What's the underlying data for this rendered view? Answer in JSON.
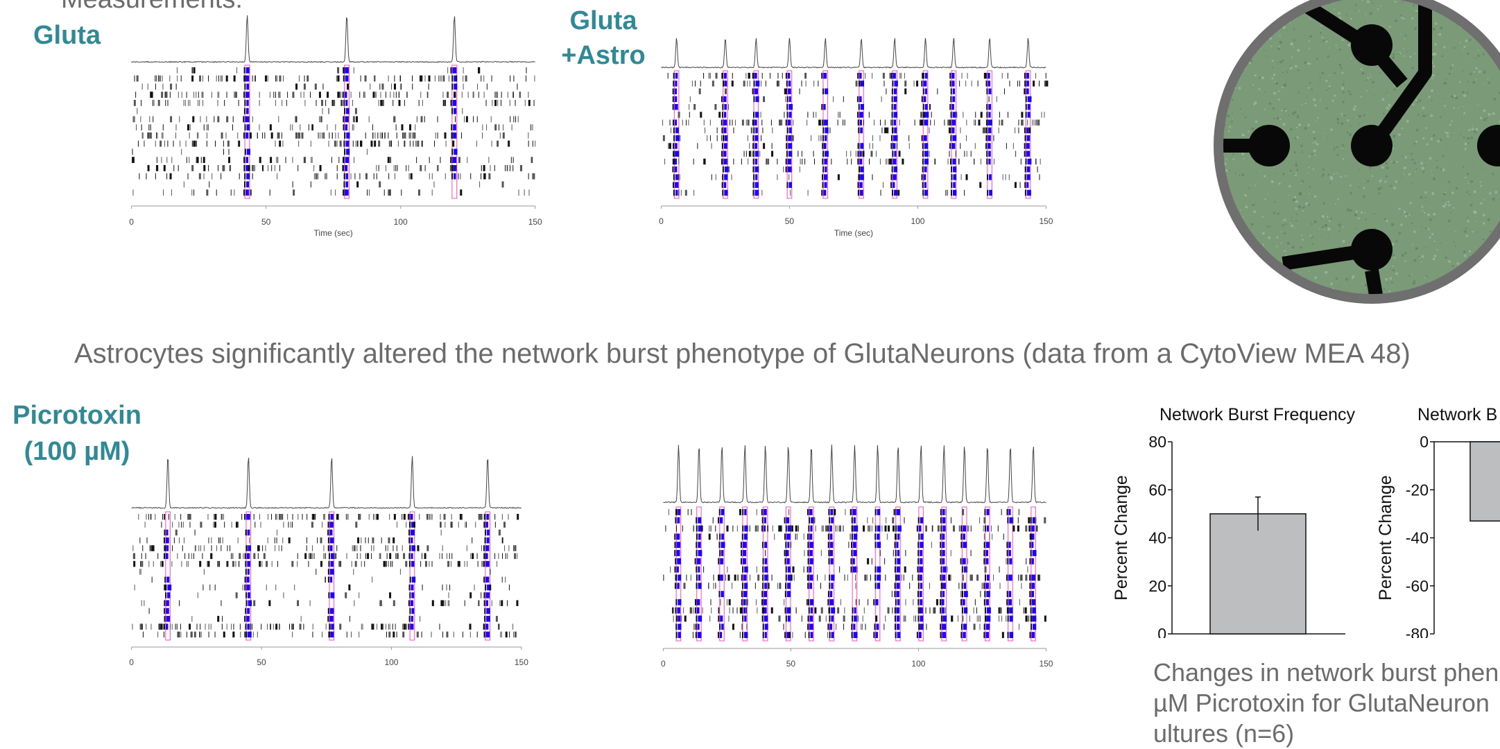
{
  "header_fragment": "Measurements:",
  "labels": {
    "gluta": "Gluta",
    "gluta_astro_line1": "Gluta",
    "gluta_astro_line2": "+Astro",
    "picrotoxin_line1": "Picrotoxin",
    "picrotoxin_line2": "(100 µM)"
  },
  "caption_top": "Astrocytes significantly altered the network burst phenotype of GlutaNeurons (data from a CytoView MEA 48)",
  "caption_bottom_line1": "Changes in network burst phen",
  "caption_bottom_line2": "µM Picrotoxin for GlutaNeuron",
  "caption_bottom_line3": "ultures (n=6)",
  "colors": {
    "teal": "#2f8a96",
    "caption_gray": "#6b6b6b",
    "burst_blue": "#1f00ff",
    "burst_outline": "#ff66cc",
    "bar_fill": "#bdbec0",
    "mea_ring": "#6f6f6f",
    "mea_green": "#7a9a78"
  },
  "chart_data": [
    {
      "type": "raster",
      "name_label": "Gluta",
      "xlabel": "Time (sec)",
      "xlim": [
        0,
        150
      ],
      "xticks": [
        0,
        50,
        100,
        150
      ],
      "channels": 16,
      "burst_times": [
        43,
        80,
        120
      ]
    },
    {
      "type": "raster",
      "name_label": "Gluta +Astro",
      "xlabel": "Time (sec)",
      "xlim": [
        0,
        150
      ],
      "xticks": [
        0,
        50,
        100,
        150
      ],
      "channels": 16,
      "burst_times": [
        6,
        25,
        37,
        50,
        64,
        78,
        91,
        103,
        114,
        128,
        143
      ]
    },
    {
      "type": "raster",
      "name_label": "Picrotoxin (100 µM) Gluta",
      "xlabel": "",
      "xlim": [
        0,
        150
      ],
      "xticks": [
        0,
        50,
        100,
        150
      ],
      "channels": 16,
      "burst_times": [
        14,
        45,
        77,
        108,
        137
      ]
    },
    {
      "type": "raster",
      "name_label": "Picrotoxin (100 µM) Gluta +Astro",
      "xlabel": "",
      "xlim": [
        0,
        150
      ],
      "xticks": [
        0,
        50,
        100,
        150
      ],
      "channels": 16,
      "burst_times": [
        6,
        14,
        23,
        32,
        40,
        49,
        58,
        66,
        75,
        84,
        92,
        101,
        110,
        118,
        127,
        136,
        145
      ]
    },
    {
      "type": "bar",
      "title": "Network Burst Frequency",
      "ylabel": "Percent Change",
      "ylim": [
        0,
        80
      ],
      "yticks": [
        0,
        20,
        40,
        60,
        80
      ],
      "categories": [
        ""
      ],
      "values": [
        50
      ],
      "errors": [
        7
      ]
    },
    {
      "type": "bar",
      "title": "Network B",
      "ylabel": "Percent Change",
      "ylim": [
        -80,
        0
      ],
      "yticks": [
        0,
        -20,
        -40,
        -60,
        -80
      ],
      "categories": [
        ""
      ],
      "values": [
        -33
      ],
      "errors": [
        0
      ]
    }
  ]
}
